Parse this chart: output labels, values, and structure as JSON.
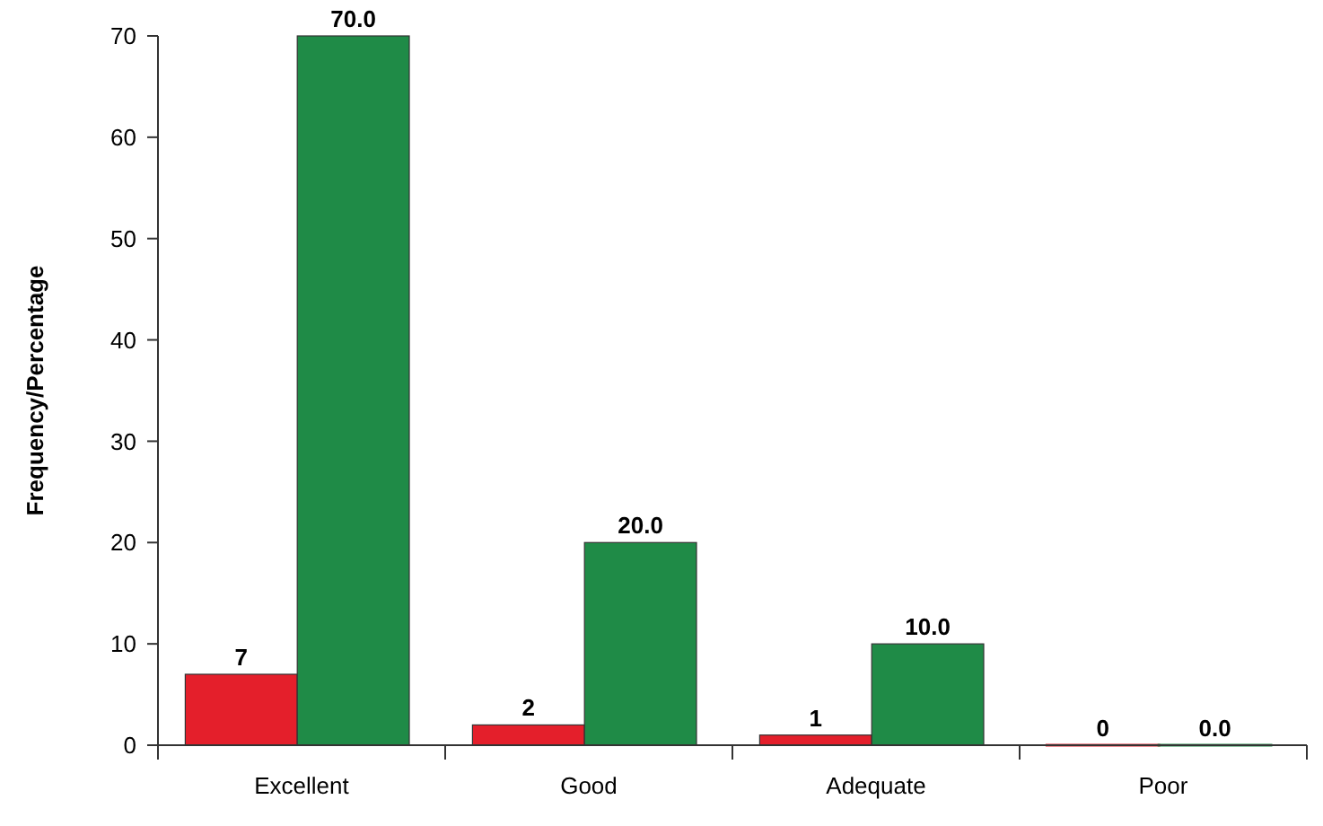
{
  "chart_data": {
    "type": "bar",
    "ylabel": "Frequency/Percentage",
    "categories": [
      "Excellent",
      "Good",
      "Adequate",
      "Poor"
    ],
    "series": [
      {
        "color": "#e41f2b",
        "values": [
          7,
          2,
          1,
          0
        ],
        "value_labels": [
          "7",
          "2",
          "1",
          "0"
        ]
      },
      {
        "color": "#1f8b47",
        "values": [
          70,
          20,
          10,
          0
        ],
        "value_labels": [
          "70.0",
          "20.0",
          "10.0",
          "0.0"
        ]
      }
    ],
    "ylim": [
      0,
      70
    ],
    "yticks": [
      0,
      10,
      20,
      30,
      40,
      50,
      60,
      70
    ],
    "grid": false
  }
}
